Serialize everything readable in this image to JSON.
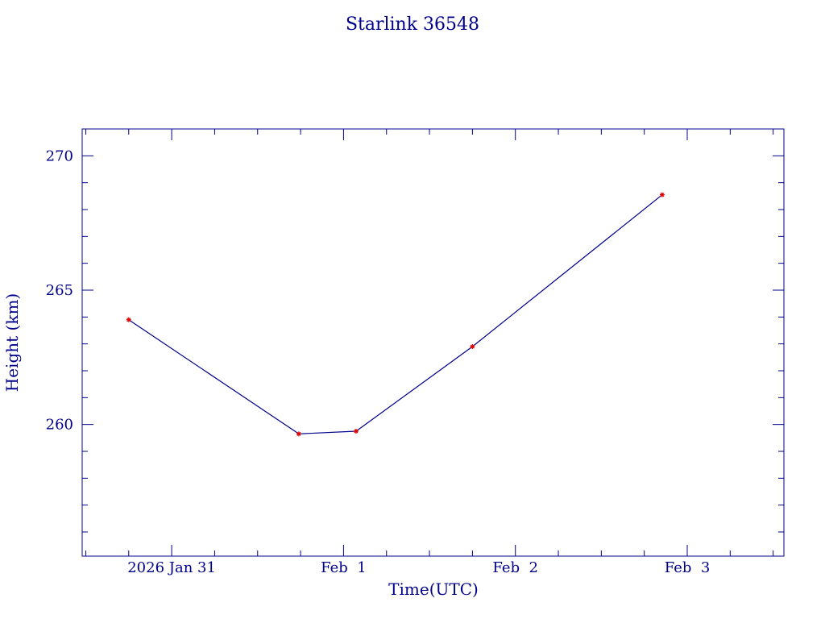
{
  "colors": {
    "axis": "#00008b",
    "line": "#00008b",
    "marker": "#dd0000",
    "background": "#ffffff"
  },
  "chart_data": {
    "type": "line",
    "title": "Starlink 36548",
    "xlabel": "Time(UTC)",
    "ylabel": "Height (km)",
    "x_unit": "date (UTC)",
    "xlim": [
      "2026-01-30 11:30",
      "2026-02-03 13:30"
    ],
    "ylim": [
      255.1,
      271.0
    ],
    "x_ticks": [
      {
        "value": "2026-01-31 00:00",
        "label": "2026 Jan 31"
      },
      {
        "value": "2026-02-01 00:00",
        "label": "Feb  1"
      },
      {
        "value": "2026-02-02 00:00",
        "label": "Feb  2"
      },
      {
        "value": "2026-02-03 00:00",
        "label": "Feb  3"
      }
    ],
    "y_ticks": [
      {
        "value": 260,
        "label": "260"
      },
      {
        "value": 265,
        "label": "265"
      },
      {
        "value": 270,
        "label": "270"
      }
    ],
    "series": [
      {
        "x": [
          "2026-01-30 18:00",
          "2026-01-31 17:45",
          "2026-02-01 01:45",
          "2026-02-01 18:00",
          "2026-02-02 20:30"
        ],
        "y": [
          263.9,
          259.65,
          259.75,
          262.9,
          268.55
        ]
      }
    ],
    "grid": false,
    "legend": "none"
  }
}
